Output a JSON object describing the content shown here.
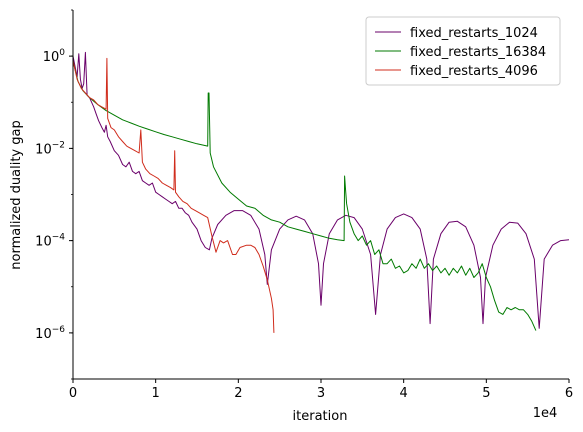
{
  "chart_data": {
    "type": "line",
    "title": "",
    "xlabel": "iteration",
    "ylabel": "normalized duality gap",
    "x_scale_label": "1e4",
    "xlim": [
      0,
      60000
    ],
    "ylim_log10": [
      -7,
      1
    ],
    "y_scale": "log",
    "grid": false,
    "legend_position": "top-right",
    "x_ticks": [
      {
        "value": 0,
        "label": "0"
      },
      {
        "value": 10000,
        "label": "1"
      },
      {
        "value": 20000,
        "label": "2"
      },
      {
        "value": 30000,
        "label": "3"
      },
      {
        "value": 40000,
        "label": "4"
      },
      {
        "value": 50000,
        "label": "5"
      },
      {
        "value": 60000,
        "label": "6"
      }
    ],
    "y_ticks": [
      {
        "exp": 0,
        "base": "10",
        "sup": "0"
      },
      {
        "exp": -2,
        "base": "10",
        "sup": "−2"
      },
      {
        "exp": -4,
        "base": "10",
        "sup": "−4"
      },
      {
        "exp": -6,
        "base": "10",
        "sup": "−6"
      }
    ],
    "series": [
      {
        "name": "fixed_restarts_1024",
        "color": "#6a006a",
        "points": [
          [
            0,
            0.0
          ],
          [
            500,
            -0.45
          ],
          [
            700,
            0.05
          ],
          [
            900,
            -0.5
          ],
          [
            1100,
            -0.7
          ],
          [
            1300,
            -0.6
          ],
          [
            1500,
            0.08
          ],
          [
            1700,
            -0.85
          ],
          [
            2000,
            -0.9
          ],
          [
            2500,
            -1.1
          ],
          [
            2800,
            -1.25
          ],
          [
            3100,
            -1.4
          ],
          [
            3500,
            -1.55
          ],
          [
            3800,
            -1.65
          ],
          [
            4000,
            -1.5
          ],
          [
            4200,
            -1.75
          ],
          [
            4500,
            -1.85
          ],
          [
            5000,
            -2.05
          ],
          [
            5500,
            -2.15
          ],
          [
            6000,
            -2.35
          ],
          [
            6400,
            -2.4
          ],
          [
            6800,
            -2.3
          ],
          [
            7200,
            -2.5
          ],
          [
            7600,
            -2.55
          ],
          [
            8000,
            -2.5
          ],
          [
            8400,
            -2.7
          ],
          [
            8800,
            -2.75
          ],
          [
            9200,
            -2.8
          ],
          [
            9600,
            -2.75
          ],
          [
            10000,
            -2.95
          ],
          [
            10400,
            -3.0
          ],
          [
            10800,
            -3.05
          ],
          [
            11200,
            -3.1
          ],
          [
            11600,
            -3.15
          ],
          [
            12000,
            -3.2
          ],
          [
            12400,
            -3.15
          ],
          [
            12800,
            -3.3
          ],
          [
            13200,
            -3.3
          ],
          [
            13600,
            -3.4
          ],
          [
            14000,
            -3.45
          ],
          [
            14400,
            -3.6
          ],
          [
            15000,
            -3.75
          ],
          [
            15500,
            -4.0
          ],
          [
            16000,
            -4.15
          ],
          [
            16500,
            -4.2
          ],
          [
            16800,
            -3.95
          ],
          [
            17500,
            -3.65
          ],
          [
            18500,
            -3.45
          ],
          [
            19500,
            -3.35
          ],
          [
            20500,
            -3.35
          ],
          [
            21500,
            -3.45
          ],
          [
            22500,
            -3.75
          ],
          [
            23200,
            -4.3
          ],
          [
            23500,
            -4.95
          ],
          [
            24000,
            -4.2
          ],
          [
            25000,
            -3.75
          ],
          [
            26000,
            -3.55
          ],
          [
            27000,
            -3.47
          ],
          [
            28000,
            -3.55
          ],
          [
            29000,
            -3.85
          ],
          [
            29700,
            -4.5
          ],
          [
            30000,
            -5.4
          ],
          [
            30300,
            -4.5
          ],
          [
            31000,
            -3.85
          ],
          [
            32000,
            -3.55
          ],
          [
            33000,
            -3.45
          ],
          [
            34000,
            -3.5
          ],
          [
            35000,
            -3.75
          ],
          [
            36000,
            -4.3
          ],
          [
            36600,
            -5.6
          ],
          [
            37200,
            -4.3
          ],
          [
            38000,
            -3.75
          ],
          [
            39000,
            -3.5
          ],
          [
            40000,
            -3.42
          ],
          [
            41000,
            -3.5
          ],
          [
            42000,
            -3.75
          ],
          [
            42800,
            -4.4
          ],
          [
            43200,
            -5.8
          ],
          [
            43600,
            -4.4
          ],
          [
            44500,
            -3.85
          ],
          [
            45500,
            -3.6
          ],
          [
            46500,
            -3.58
          ],
          [
            47500,
            -3.7
          ],
          [
            48500,
            -4.1
          ],
          [
            49300,
            -4.8
          ],
          [
            49600,
            -5.8
          ],
          [
            49900,
            -4.8
          ],
          [
            50800,
            -4.1
          ],
          [
            51800,
            -3.75
          ],
          [
            52800,
            -3.6
          ],
          [
            53800,
            -3.62
          ],
          [
            54800,
            -3.85
          ],
          [
            55800,
            -4.4
          ],
          [
            56400,
            -5.9
          ],
          [
            57000,
            -4.4
          ],
          [
            58000,
            -4.1
          ],
          [
            59000,
            -4.0
          ],
          [
            60000,
            -3.98
          ]
        ]
      },
      {
        "name": "fixed_restarts_16384",
        "color": "#007a00",
        "points": [
          [
            0,
            -0.1
          ],
          [
            600,
            -0.55
          ],
          [
            1200,
            -0.75
          ],
          [
            2000,
            -0.9
          ],
          [
            3000,
            -1.05
          ],
          [
            4000,
            -1.18
          ],
          [
            5000,
            -1.28
          ],
          [
            6000,
            -1.38
          ],
          [
            7000,
            -1.45
          ],
          [
            8000,
            -1.52
          ],
          [
            9000,
            -1.58
          ],
          [
            10000,
            -1.64
          ],
          [
            11000,
            -1.7
          ],
          [
            12000,
            -1.75
          ],
          [
            13000,
            -1.8
          ],
          [
            14000,
            -1.85
          ],
          [
            15000,
            -1.9
          ],
          [
            16300,
            -1.95
          ],
          [
            16350,
            -0.8
          ],
          [
            16450,
            -0.8
          ],
          [
            16600,
            -2.1
          ],
          [
            17000,
            -2.4
          ],
          [
            18000,
            -2.75
          ],
          [
            19000,
            -2.95
          ],
          [
            20000,
            -3.1
          ],
          [
            21000,
            -3.25
          ],
          [
            22000,
            -3.3
          ],
          [
            23000,
            -3.45
          ],
          [
            24000,
            -3.55
          ],
          [
            25000,
            -3.6
          ],
          [
            26000,
            -3.7
          ],
          [
            27000,
            -3.75
          ],
          [
            28000,
            -3.8
          ],
          [
            29000,
            -3.85
          ],
          [
            30000,
            -3.9
          ],
          [
            31000,
            -3.95
          ],
          [
            32000,
            -3.98
          ],
          [
            32800,
            -4.0
          ],
          [
            32850,
            -2.6
          ],
          [
            32950,
            -2.85
          ],
          [
            33100,
            -3.2
          ],
          [
            33500,
            -3.6
          ],
          [
            34000,
            -3.85
          ],
          [
            34500,
            -4.0
          ],
          [
            35000,
            -3.9
          ],
          [
            35500,
            -4.1
          ],
          [
            36000,
            -4.0
          ],
          [
            36500,
            -4.3
          ],
          [
            37000,
            -4.2
          ],
          [
            37500,
            -4.5
          ],
          [
            38000,
            -4.5
          ],
          [
            38500,
            -4.4
          ],
          [
            39000,
            -4.6
          ],
          [
            39500,
            -4.55
          ],
          [
            40000,
            -4.7
          ],
          [
            40500,
            -4.65
          ],
          [
            41000,
            -4.5
          ],
          [
            41500,
            -4.6
          ],
          [
            42000,
            -4.4
          ],
          [
            42500,
            -4.6
          ],
          [
            43000,
            -4.5
          ],
          [
            43500,
            -4.65
          ],
          [
            44000,
            -4.55
          ],
          [
            44500,
            -4.7
          ],
          [
            45000,
            -4.6
          ],
          [
            45500,
            -4.75
          ],
          [
            46000,
            -4.6
          ],
          [
            46500,
            -4.7
          ],
          [
            47000,
            -4.55
          ],
          [
            47500,
            -4.75
          ],
          [
            48000,
            -4.6
          ],
          [
            48500,
            -4.8
          ],
          [
            49000,
            -4.7
          ],
          [
            49500,
            -4.5
          ],
          [
            50000,
            -4.8
          ],
          [
            50500,
            -5.0
          ],
          [
            51000,
            -5.3
          ],
          [
            51500,
            -5.55
          ],
          [
            52000,
            -5.6
          ],
          [
            52500,
            -5.45
          ],
          [
            53000,
            -5.5
          ],
          [
            53500,
            -5.45
          ],
          [
            54000,
            -5.5
          ],
          [
            54500,
            -5.5
          ],
          [
            55000,
            -5.6
          ],
          [
            55500,
            -5.75
          ],
          [
            56000,
            -5.95
          ]
        ]
      },
      {
        "name": "fixed_restarts_4096",
        "color": "#d02c1c",
        "points": [
          [
            0,
            -0.1
          ],
          [
            500,
            -0.5
          ],
          [
            1000,
            -0.7
          ],
          [
            1500,
            -0.8
          ],
          [
            2000,
            -0.9
          ],
          [
            2500,
            -0.95
          ],
          [
            3000,
            -1.05
          ],
          [
            3500,
            -1.1
          ],
          [
            4000,
            -1.15
          ],
          [
            4100,
            -0.05
          ],
          [
            4200,
            -1.35
          ],
          [
            4600,
            -1.55
          ],
          [
            5000,
            -1.6
          ],
          [
            5500,
            -1.75
          ],
          [
            6000,
            -1.85
          ],
          [
            6500,
            -1.95
          ],
          [
            7000,
            -2.0
          ],
          [
            7500,
            -2.05
          ],
          [
            8000,
            -2.1
          ],
          [
            8200,
            -1.6
          ],
          [
            8400,
            -2.3
          ],
          [
            8800,
            -2.45
          ],
          [
            9300,
            -2.55
          ],
          [
            9800,
            -2.6
          ],
          [
            10300,
            -2.65
          ],
          [
            10800,
            -2.75
          ],
          [
            11300,
            -2.8
          ],
          [
            11800,
            -2.85
          ],
          [
            12200,
            -2.9
          ],
          [
            12300,
            -2.05
          ],
          [
            12400,
            -2.95
          ],
          [
            12800,
            -3.05
          ],
          [
            13300,
            -3.15
          ],
          [
            13800,
            -3.2
          ],
          [
            14300,
            -3.3
          ],
          [
            14800,
            -3.35
          ],
          [
            15300,
            -3.4
          ],
          [
            15800,
            -3.45
          ],
          [
            16300,
            -3.5
          ],
          [
            16800,
            -3.9
          ],
          [
            17300,
            -4.25
          ],
          [
            17800,
            -4.0
          ],
          [
            18200,
            -4.05
          ],
          [
            18700,
            -4.0
          ],
          [
            19300,
            -4.3
          ],
          [
            19700,
            -4.3
          ],
          [
            20200,
            -4.15
          ],
          [
            21000,
            -4.1
          ],
          [
            21500,
            -4.1
          ],
          [
            22000,
            -4.15
          ],
          [
            22500,
            -4.3
          ],
          [
            23000,
            -4.55
          ],
          [
            23500,
            -4.85
          ],
          [
            24000,
            -5.25
          ],
          [
            24200,
            -5.5
          ],
          [
            24300,
            -6.0
          ]
        ]
      }
    ]
  }
}
